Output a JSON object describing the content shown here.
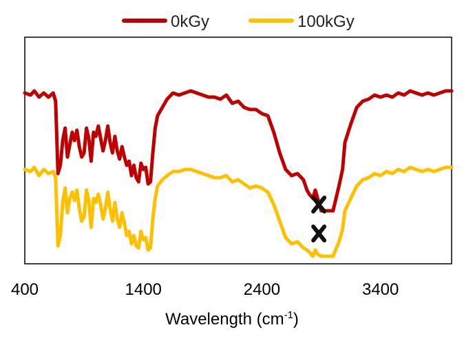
{
  "chart_data": {
    "type": "line",
    "title": "",
    "xlabel": "Wavelength (cm",
    "xlabel_superscript": "-1",
    "xlabel_suffix": ")",
    "ylabel": "",
    "xlim": [
      400,
      4000
    ],
    "ylim": [
      0,
      100
    ],
    "xticks": [
      400,
      1400,
      2400,
      3400
    ],
    "xtick_labels": [
      "400",
      "1400",
      "2400",
      "3400"
    ],
    "legend_position": "top-center",
    "series": [
      {
        "name": "0kGy",
        "color": "#c00000",
        "x": [
          400,
          450,
          480,
          520,
          560,
          600,
          640,
          660,
          680,
          700,
          720,
          740,
          760,
          780,
          800,
          820,
          840,
          860,
          880,
          900,
          920,
          940,
          960,
          980,
          1000,
          1020,
          1040,
          1060,
          1080,
          1100,
          1120,
          1140,
          1160,
          1180,
          1200,
          1220,
          1240,
          1260,
          1280,
          1300,
          1320,
          1340,
          1360,
          1380,
          1400,
          1420,
          1440,
          1460,
          1480,
          1500,
          1520,
          1560,
          1600,
          1650,
          1700,
          1750,
          1800,
          1850,
          1900,
          1950,
          2000,
          2050,
          2100,
          2150,
          2200,
          2250,
          2300,
          2350,
          2400,
          2450,
          2500,
          2550,
          2600,
          2650,
          2700,
          2750,
          2780,
          2800,
          2830,
          2850,
          2870,
          2900,
          2950,
          3000,
          3050,
          3080,
          3100,
          3150,
          3200,
          3250,
          3300,
          3350,
          3400,
          3450,
          3500,
          3550,
          3600,
          3650,
          3700,
          3750,
          3800,
          3850,
          3900,
          3950,
          4000
        ],
        "values": [
          79,
          78,
          80,
          77,
          79,
          77,
          79,
          75,
          40,
          44,
          56,
          62,
          48,
          54,
          60,
          56,
          61,
          53,
          48,
          50,
          62,
          57,
          46,
          60,
          58,
          63,
          57,
          51,
          56,
          63,
          55,
          50,
          58,
          51,
          47,
          53,
          48,
          44,
          46,
          39,
          44,
          38,
          36,
          45,
          42,
          43,
          35,
          36,
          50,
          62,
          68,
          72,
          76,
          79,
          78,
          79,
          80,
          79,
          78,
          77,
          77,
          76,
          78,
          74,
          75,
          72,
          71,
          71,
          69,
          68,
          60,
          50,
          42,
          39,
          40,
          37,
          32,
          30,
          28,
          32,
          28,
          22,
          22,
          22,
          34,
          42,
          55,
          64,
          72,
          75,
          76,
          78,
          77,
          78,
          77,
          79,
          78,
          80,
          79,
          78,
          79,
          78,
          79,
          80,
          80
        ]
      },
      {
        "name": "100kGy",
        "color": "#ffc000",
        "x": [
          400,
          450,
          480,
          520,
          560,
          600,
          640,
          660,
          680,
          700,
          720,
          740,
          760,
          780,
          800,
          820,
          840,
          860,
          880,
          900,
          920,
          940,
          960,
          980,
          1000,
          1020,
          1040,
          1060,
          1080,
          1100,
          1120,
          1140,
          1160,
          1180,
          1200,
          1220,
          1240,
          1260,
          1280,
          1300,
          1320,
          1340,
          1360,
          1380,
          1400,
          1420,
          1440,
          1460,
          1480,
          1500,
          1520,
          1560,
          1600,
          1650,
          1700,
          1750,
          1800,
          1850,
          1900,
          1950,
          2000,
          2050,
          2100,
          2150,
          2200,
          2250,
          2300,
          2350,
          2400,
          2450,
          2500,
          2550,
          2600,
          2650,
          2700,
          2750,
          2780,
          2800,
          2830,
          2850,
          2870,
          2900,
          2950,
          3000,
          3050,
          3080,
          3100,
          3150,
          3200,
          3250,
          3300,
          3350,
          3400,
          3450,
          3500,
          3550,
          3600,
          3650,
          3700,
          3750,
          3800,
          3850,
          3900,
          3950,
          4000
        ],
        "values": [
          42,
          41,
          43,
          39,
          42,
          40,
          41,
          38,
          5,
          10,
          26,
          33,
          21,
          28,
          31,
          27,
          32,
          23,
          17,
          19,
          32,
          27,
          14,
          28,
          26,
          30,
          25,
          18,
          23,
          31,
          23,
          17,
          26,
          18,
          14,
          21,
          16,
          10,
          12,
          6,
          10,
          5,
          4,
          12,
          8,
          9,
          3,
          4,
          18,
          28,
          34,
          37,
          39,
          41,
          41,
          42,
          42,
          41,
          40,
          39,
          38,
          38,
          39,
          36,
          37,
          35,
          33,
          34,
          33,
          31,
          25,
          17,
          9,
          6,
          7,
          4,
          3,
          2,
          0,
          3,
          1,
          0,
          0,
          0,
          7,
          13,
          22,
          28,
          34,
          37,
          38,
          40,
          39,
          41,
          40,
          42,
          41,
          43,
          42,
          41,
          42,
          41,
          42,
          43,
          43
        ]
      }
    ],
    "annotations": [
      {
        "text": "x",
        "x": 2880,
        "y": 25,
        "series": "0kGy"
      },
      {
        "text": "x",
        "x": 2880,
        "y": 11,
        "series": "100kGy"
      }
    ]
  }
}
